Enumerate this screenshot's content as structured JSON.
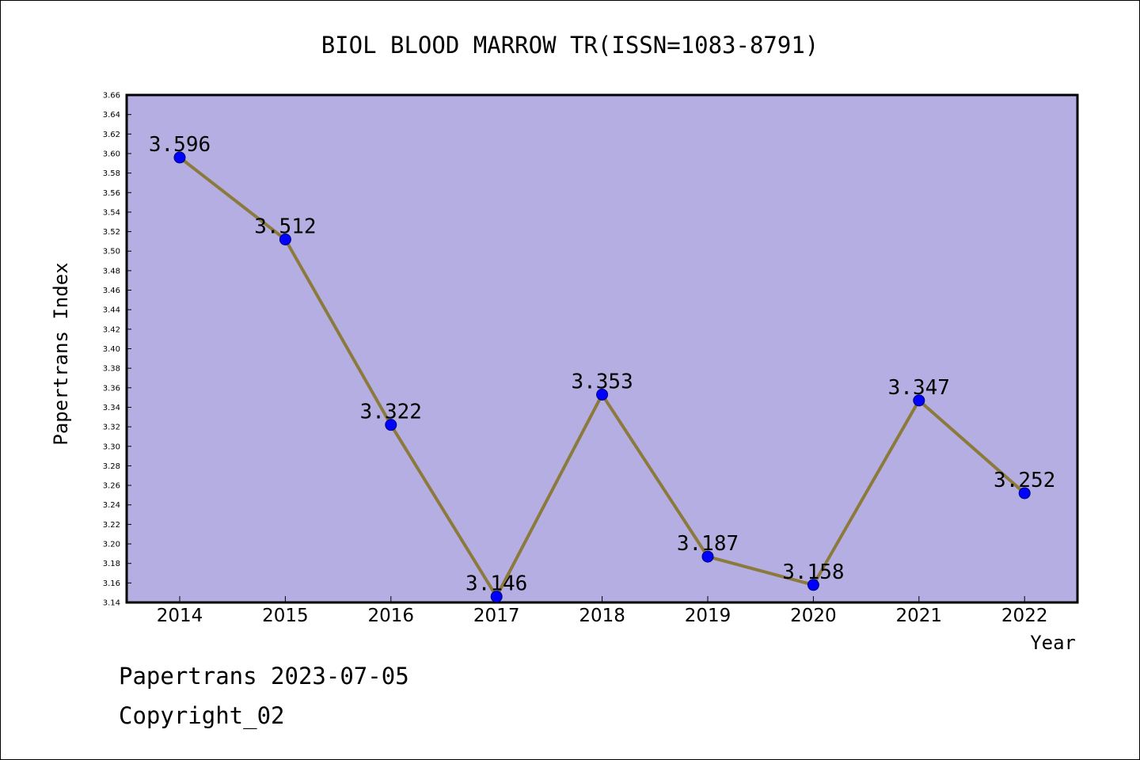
{
  "chart_data": {
    "type": "line",
    "title": "BIOL BLOOD MARROW TR(ISSN=1083-8791)",
    "xlabel": "Year",
    "ylabel": "Papertrans Index",
    "categories": [
      "2014",
      "2015",
      "2016",
      "2017",
      "2018",
      "2019",
      "2020",
      "2021",
      "2022"
    ],
    "series": [
      {
        "values": [
          3.596,
          3.512,
          3.322,
          3.146,
          3.353,
          3.187,
          3.158,
          3.347,
          3.252
        ],
        "labels": [
          "3.596",
          "3.512",
          "3.322",
          "3.146",
          "3.353",
          "3.187",
          "3.158",
          "3.347",
          "3.252"
        ]
      }
    ],
    "ylim": [
      3.14,
      3.66
    ],
    "ytick_step": 0.02,
    "grid": false,
    "colors": {
      "plot_background": "#b5aee3",
      "line": "#8b7a3c",
      "marker": "#0000ff"
    }
  },
  "footer": {
    "line1": "Papertrans 2023-07-05",
    "line2": "Copyright_02"
  }
}
